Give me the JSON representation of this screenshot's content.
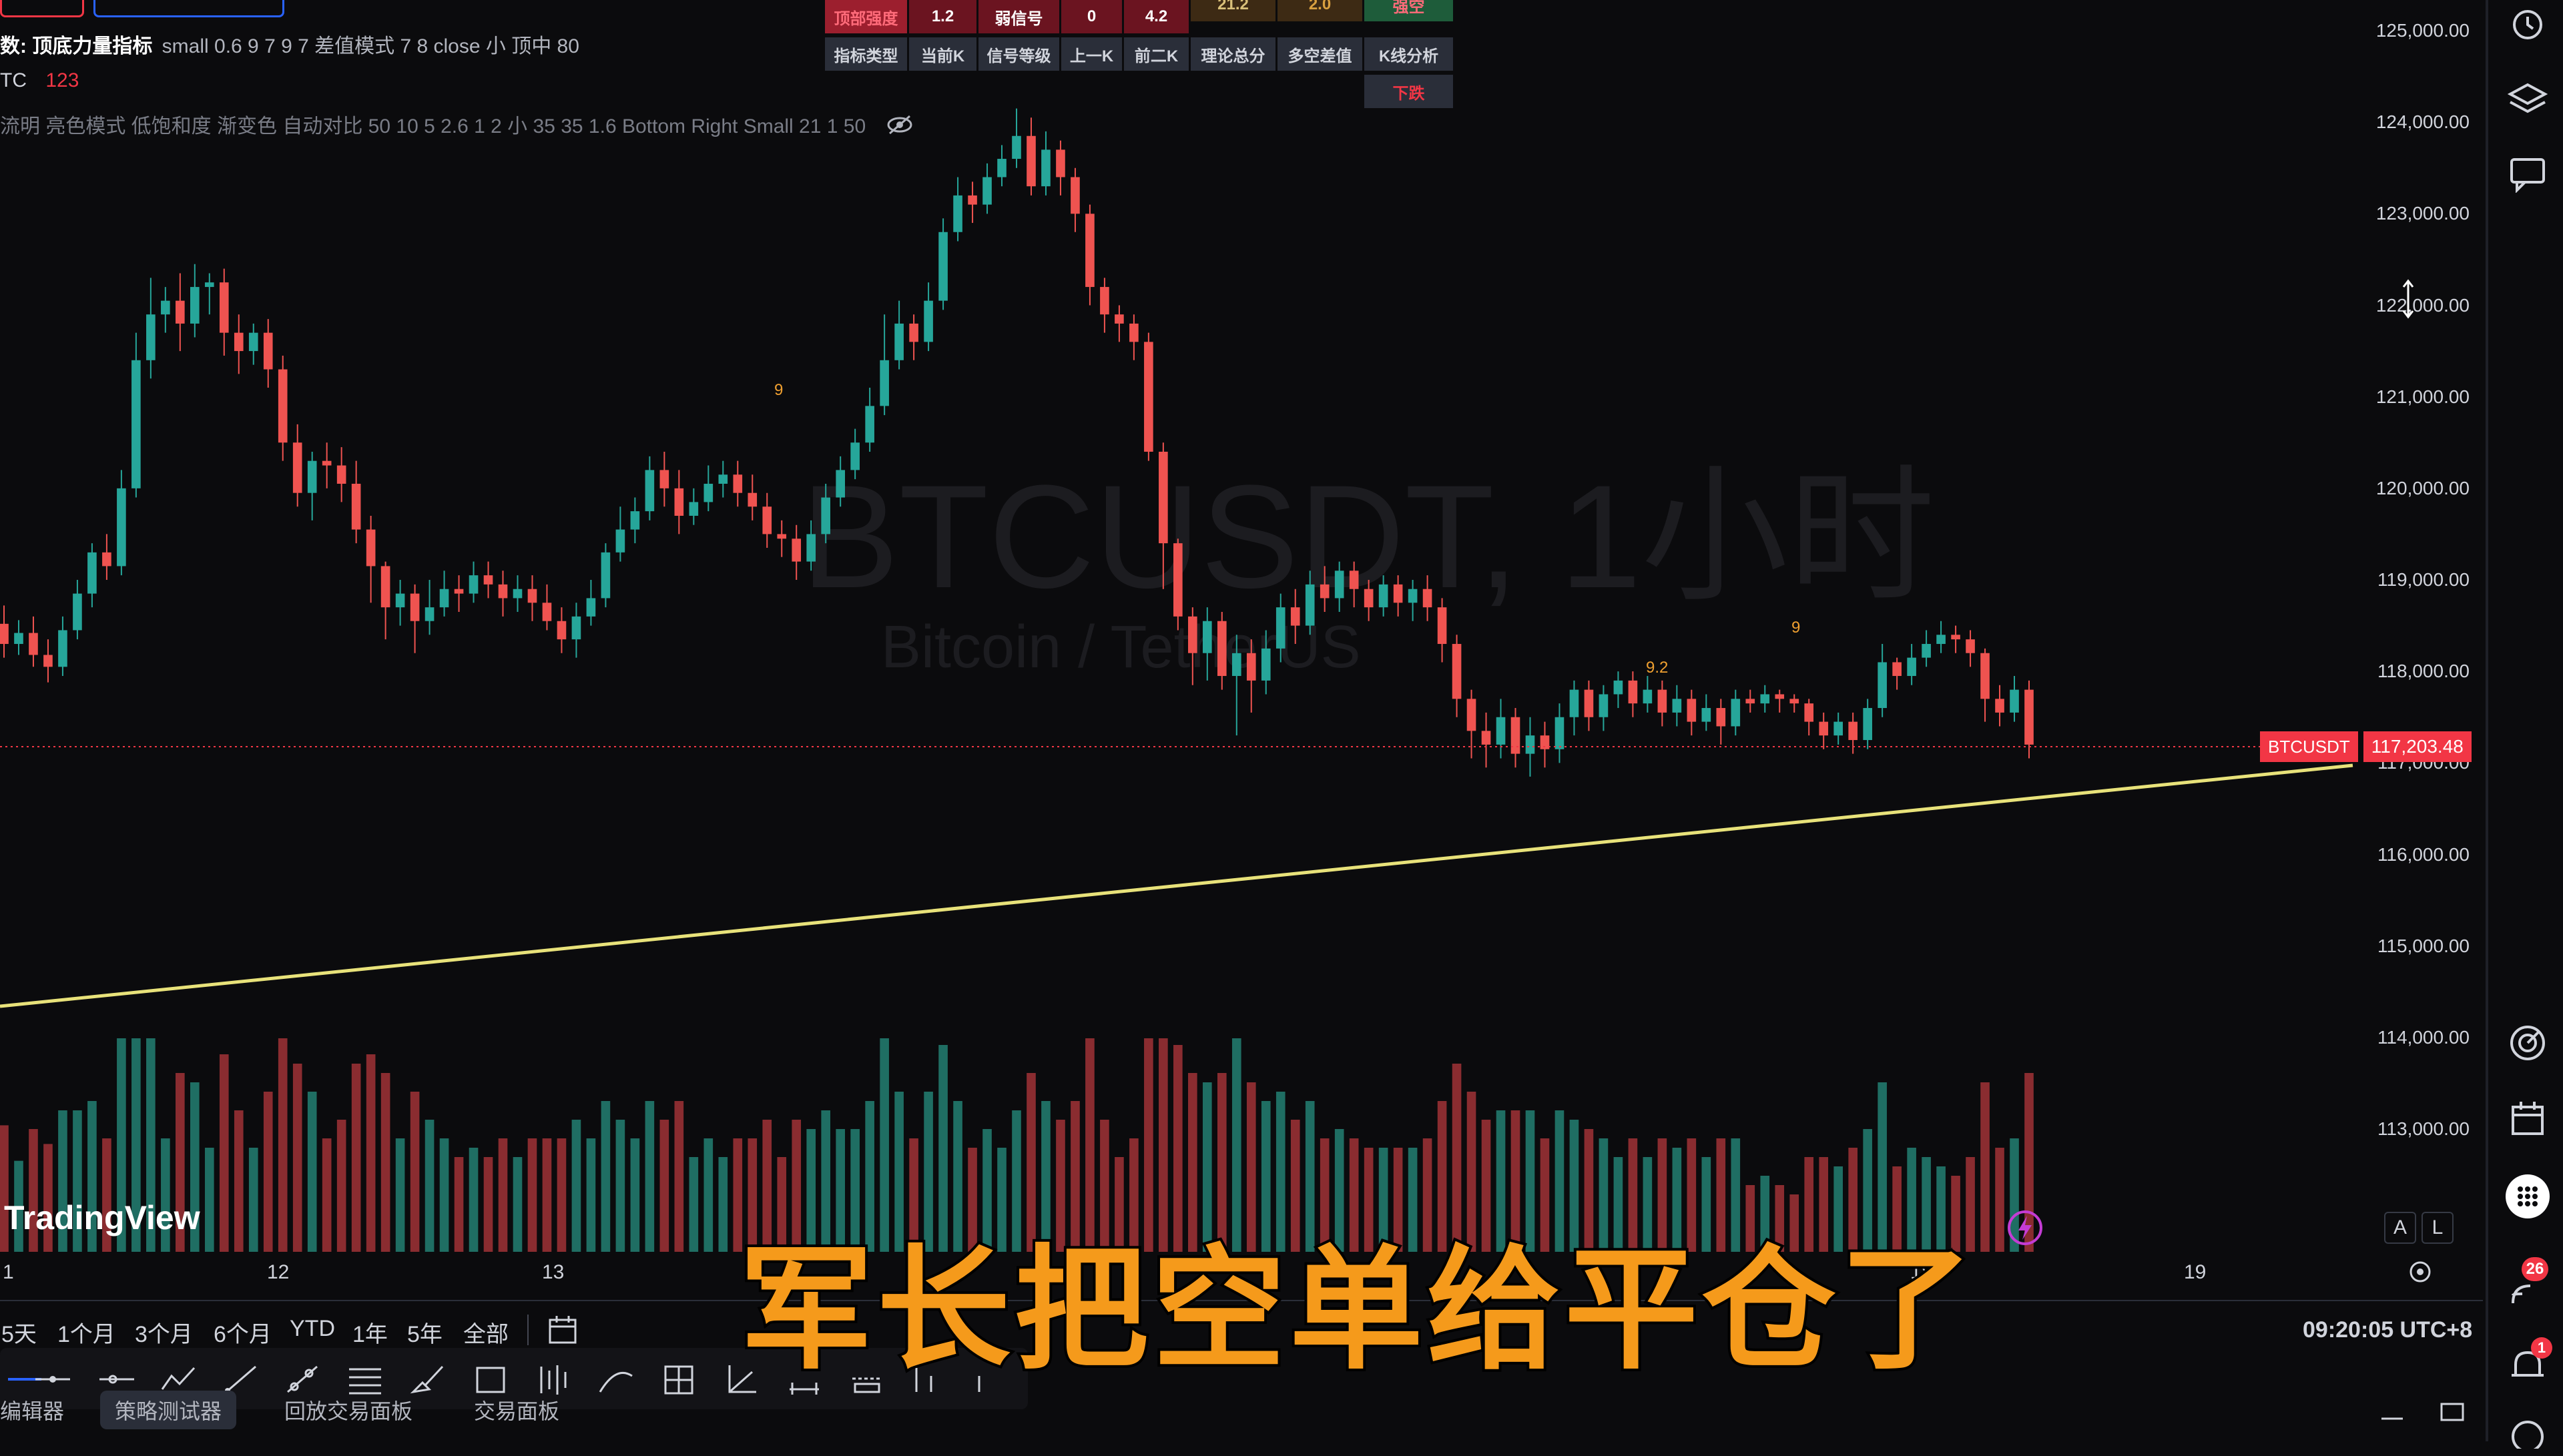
{
  "header": {
    "indicator_label": "数: 顶底力量指标",
    "indicator_params": "small 0.6 9 7 9 7 差值模式 7 8 close 小 顶中 80",
    "symbol_short": "TC",
    "symbol_value": "123",
    "settings_line": "流明 亮色模式 低饱和度 渐变色 自动对比 50 10 5 2.6 1 2 小 35 35 1.6 Bottom Right Small 21 1 50",
    "eye_icon": "eye-hidden-icon"
  },
  "signal_table": {
    "row1": [
      "顶部强度",
      "1.2",
      "弱信号",
      "0",
      "4.2",
      "21.2",
      "2.0",
      "强空"
    ],
    "row2": [
      "指标类型",
      "当前K",
      "信号等级",
      "上一K",
      "前二K",
      "理论总分",
      "多空差值",
      "K线分析"
    ],
    "row3_last": "下跌"
  },
  "watermark": {
    "title": "BTCUSDT, 1小时",
    "subtitle": "Bitcoin / TetherUS"
  },
  "price_axis": {
    "labels": [
      "125,000.00",
      "124,000.00",
      "123,000.00",
      "122,000.00",
      "121,000.00",
      "120,000.00",
      "119,000.00",
      "118,000.00",
      "117,000.00",
      "116,000.00",
      "115,000.00",
      "114,000.00",
      "113,000.00"
    ],
    "current_symbol": "BTCUSDT",
    "current_price": "117,203.48",
    "current_price_color": "#f23645"
  },
  "time_axis": {
    "labels": [
      "1",
      "12",
      "13",
      "18",
      "19"
    ]
  },
  "annotations": [
    "9",
    "9.2",
    "9"
  ],
  "branding": {
    "logo": "TradingView"
  },
  "scale_buttons": {
    "auto": "A",
    "log": "L"
  },
  "ranges": [
    "5天",
    "1个月",
    "3个月",
    "6个月",
    "YTD",
    "1年",
    "5年",
    "全部"
  ],
  "clock": "09:20:05 UTC+8",
  "bottom_tabs": [
    "编辑器",
    "策略测试器",
    "回放交易面板",
    "交易面板"
  ],
  "subtitle_caption": "军长把空单给平仓了",
  "notifications": {
    "feed_count": "26",
    "alert_count": "1"
  },
  "colors": {
    "up": "#26a69a",
    "down": "#ef5350",
    "trendline": "#e8e27a",
    "background": "#0b0b0d",
    "caption": "#f59a1b"
  },
  "chart_data": {
    "type": "candlestick",
    "symbol": "BTCUSDT",
    "interval": "1小时",
    "ylim": [
      112500,
      125300
    ],
    "x_ticks": [
      "1",
      "12",
      "13",
      "18",
      "19"
    ],
    "last_price": 117203.48,
    "candles": [
      [
        118520,
        118300,
        118720,
        118150
      ],
      [
        118300,
        118420,
        118560,
        118180
      ],
      [
        118420,
        118180,
        118600,
        118050
      ],
      [
        118180,
        118050,
        118350,
        117880
      ],
      [
        118050,
        118450,
        118600,
        117950
      ],
      [
        118450,
        118850,
        119000,
        118350
      ],
      [
        118850,
        119300,
        119400,
        118700
      ],
      [
        119300,
        119150,
        119500,
        119000
      ],
      [
        119150,
        120000,
        120200,
        119050
      ],
      [
        120000,
        121400,
        121700,
        119900
      ],
      [
        121400,
        121900,
        122300,
        121200
      ],
      [
        121900,
        122050,
        122200,
        121700
      ],
      [
        122050,
        121800,
        122350,
        121500
      ],
      [
        121800,
        122200,
        122450,
        121650
      ],
      [
        122200,
        122250,
        122350,
        121900
      ],
      [
        122250,
        121700,
        122400,
        121450
      ],
      [
        121700,
        121500,
        121900,
        121250
      ],
      [
        121500,
        121700,
        121800,
        121350
      ],
      [
        121700,
        121300,
        121850,
        121100
      ],
      [
        121300,
        120500,
        121450,
        120300
      ],
      [
        120500,
        119950,
        120700,
        119800
      ],
      [
        119950,
        120300,
        120400,
        119650
      ],
      [
        120300,
        120250,
        120500,
        120000
      ],
      [
        120250,
        120050,
        120450,
        119850
      ],
      [
        120050,
        119550,
        120300,
        119400
      ],
      [
        119550,
        119150,
        119700,
        118750
      ],
      [
        119150,
        118700,
        119200,
        118350
      ],
      [
        118700,
        118850,
        119000,
        118500
      ],
      [
        118850,
        118550,
        118950,
        118200
      ],
      [
        118550,
        118700,
        119000,
        118400
      ],
      [
        118700,
        118900,
        119100,
        118600
      ],
      [
        118900,
        118850,
        119050,
        118650
      ],
      [
        118850,
        119050,
        119200,
        118750
      ],
      [
        119050,
        118950,
        119200,
        118800
      ],
      [
        118950,
        118800,
        119100,
        118600
      ],
      [
        118800,
        118900,
        119050,
        118650
      ],
      [
        118900,
        118750,
        119050,
        118550
      ],
      [
        118750,
        118550,
        118950,
        118450
      ],
      [
        118550,
        118350,
        118700,
        118200
      ],
      [
        118350,
        118600,
        118750,
        118150
      ],
      [
        118600,
        118800,
        119000,
        118500
      ],
      [
        118800,
        119300,
        119400,
        118700
      ],
      [
        119300,
        119550,
        119800,
        119200
      ],
      [
        119550,
        119750,
        119900,
        119400
      ],
      [
        119750,
        120200,
        120350,
        119650
      ],
      [
        120200,
        120000,
        120400,
        119800
      ],
      [
        120000,
        119700,
        120200,
        119500
      ],
      [
        119700,
        119850,
        120000,
        119600
      ],
      [
        119850,
        120050,
        120250,
        119750
      ],
      [
        120050,
        120150,
        120300,
        119900
      ],
      [
        120150,
        119950,
        120300,
        119800
      ],
      [
        119950,
        119800,
        120150,
        119650
      ],
      [
        119800,
        119500,
        119950,
        119350
      ],
      [
        119500,
        119450,
        119650,
        119250
      ],
      [
        119450,
        119200,
        119600,
        119000
      ],
      [
        119200,
        119500,
        119650,
        119100
      ],
      [
        119500,
        119900,
        120050,
        119400
      ],
      [
        119900,
        120200,
        120350,
        119800
      ],
      [
        120200,
        120500,
        120650,
        120100
      ],
      [
        120500,
        120900,
        121100,
        120400
      ],
      [
        120900,
        121400,
        121900,
        120800
      ],
      [
        121400,
        121800,
        122050,
        121300
      ],
      [
        121800,
        121600,
        121900,
        121400
      ],
      [
        121600,
        122050,
        122250,
        121500
      ],
      [
        122050,
        122800,
        122950,
        121950
      ],
      [
        122800,
        123200,
        123400,
        122700
      ],
      [
        123200,
        123100,
        123350,
        122900
      ],
      [
        123100,
        123400,
        123550,
        123000
      ],
      [
        123400,
        123600,
        123750,
        123300
      ],
      [
        123600,
        123850,
        124150,
        123500
      ],
      [
        123850,
        123300,
        124050,
        123200
      ],
      [
        123300,
        123700,
        123900,
        123200
      ],
      [
        123700,
        123400,
        123800,
        123200
      ],
      [
        123400,
        123000,
        123500,
        122800
      ],
      [
        123000,
        122200,
        123100,
        122000
      ],
      [
        122200,
        121900,
        122300,
        121700
      ],
      [
        121900,
        121800,
        122000,
        121600
      ],
      [
        121800,
        121600,
        121900,
        121400
      ],
      [
        121600,
        120400,
        121700,
        120300
      ],
      [
        120400,
        119400,
        120500,
        118900
      ],
      [
        119400,
        118600,
        119450,
        118450
      ],
      [
        118600,
        118200,
        118700,
        117850
      ],
      [
        118200,
        118550,
        118700,
        117900
      ],
      [
        118550,
        117950,
        118650,
        117800
      ],
      [
        117950,
        118200,
        118400,
        117300
      ],
      [
        118200,
        117900,
        118350,
        117550
      ],
      [
        117900,
        118250,
        118450,
        117750
      ],
      [
        118250,
        118700,
        118850,
        118100
      ],
      [
        118700,
        118500,
        118900,
        118300
      ],
      [
        118500,
        118950,
        119100,
        118400
      ],
      [
        118950,
        118800,
        119150,
        118650
      ],
      [
        118800,
        119100,
        119200,
        118650
      ],
      [
        119100,
        118900,
        119200,
        118700
      ],
      [
        118900,
        118700,
        119000,
        118550
      ],
      [
        118700,
        118950,
        119050,
        118600
      ],
      [
        118950,
        118750,
        119050,
        118600
      ],
      [
        118750,
        118900,
        119000,
        118550
      ],
      [
        118900,
        118700,
        119050,
        118550
      ],
      [
        118700,
        118300,
        118800,
        118100
      ],
      [
        118300,
        117700,
        118400,
        117500
      ],
      [
        117700,
        117350,
        117800,
        117050
      ],
      [
        117350,
        117200,
        117550,
        116950
      ],
      [
        117200,
        117500,
        117700,
        117050
      ],
      [
        117500,
        117100,
        117600,
        116950
      ],
      [
        117100,
        117300,
        117500,
        116850
      ],
      [
        117300,
        117150,
        117450,
        116950
      ],
      [
        117150,
        117500,
        117650,
        117000
      ],
      [
        117500,
        117800,
        117900,
        117300
      ],
      [
        117800,
        117500,
        117900,
        117350
      ],
      [
        117500,
        117750,
        117850,
        117350
      ],
      [
        117750,
        117900,
        118000,
        117600
      ],
      [
        117900,
        117650,
        118000,
        117500
      ],
      [
        117650,
        117800,
        117950,
        117550
      ],
      [
        117800,
        117550,
        117900,
        117400
      ],
      [
        117550,
        117700,
        117850,
        117400
      ],
      [
        117700,
        117450,
        117800,
        117300
      ],
      [
        117450,
        117600,
        117750,
        117350
      ],
      [
        117600,
        117400,
        117700,
        117200
      ],
      [
        117400,
        117700,
        117800,
        117300
      ],
      [
        117700,
        117650,
        117800,
        117550
      ],
      [
        117650,
        117750,
        117850,
        117550
      ],
      [
        117750,
        117700,
        117800,
        117550
      ],
      [
        117700,
        117650,
        117750,
        117550
      ],
      [
        117650,
        117450,
        117700,
        117300
      ],
      [
        117450,
        117300,
        117550,
        117150
      ],
      [
        117300,
        117450,
        117550,
        117200
      ],
      [
        117450,
        117250,
        117550,
        117100
      ],
      [
        117250,
        117600,
        117700,
        117150
      ],
      [
        117600,
        118100,
        118300,
        117500
      ],
      [
        118100,
        117950,
        118150,
        117800
      ],
      [
        117950,
        118150,
        118300,
        117850
      ],
      [
        118150,
        118300,
        118450,
        118050
      ],
      [
        118300,
        118400,
        118550,
        118200
      ],
      [
        118400,
        118350,
        118500,
        118200
      ],
      [
        118350,
        118200,
        118450,
        118050
      ],
      [
        118200,
        117700,
        118250,
        117450
      ],
      [
        117700,
        117550,
        117850,
        117400
      ],
      [
        117550,
        117800,
        117950,
        117450
      ],
      [
        117800,
        117200,
        117900,
        117050
      ]
    ]
  }
}
